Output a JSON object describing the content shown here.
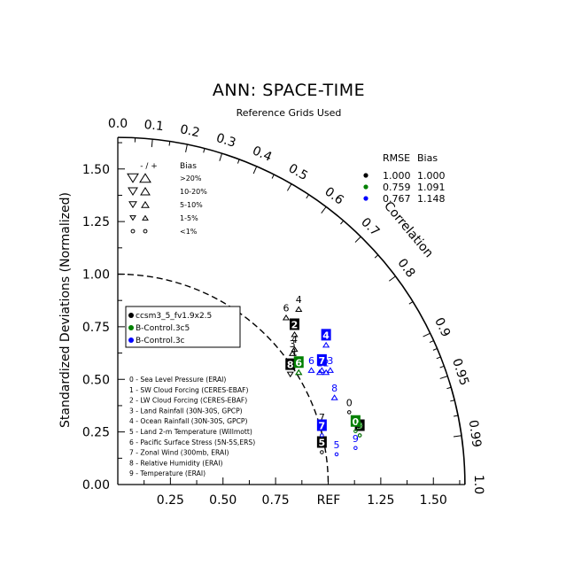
{
  "chart_data": {
    "type": "scatter",
    "subtype": "taylor-diagram",
    "title": "ANN: SPACE-TIME",
    "subtitle": "Reference Grids Used",
    "ylabel": "Standardized Deviations (Normalized)",
    "correlation_label": "Correlation",
    "ref_label": "REF",
    "x_ticks": [
      "0.25",
      "0.50",
      "0.75",
      "1.25",
      "1.50"
    ],
    "y_ticks": [
      "0.00",
      "0.25",
      "0.50",
      "0.75",
      "1.00",
      "1.25",
      "1.50"
    ],
    "correlation_ticks": [
      "0.0",
      "0.1",
      "0.2",
      "0.3",
      "0.4",
      "0.5",
      "0.6",
      "0.7",
      "0.8",
      "0.9",
      "0.95",
      "0.99",
      "1.0"
    ],
    "correlation_tick_values": [
      0.0,
      0.1,
      0.2,
      0.3,
      0.4,
      0.5,
      0.6,
      0.7,
      0.8,
      0.9,
      0.95,
      0.99,
      1.0
    ],
    "xlim": [
      0,
      1.65
    ],
    "ylim": [
      0,
      1.65
    ],
    "bias_legend": {
      "header": [
        "- / +",
        "Bias"
      ],
      "rows": [
        ">20%",
        "10-20%",
        "5-10%",
        "1-5%",
        "<1%"
      ]
    },
    "stats_table": {
      "header": [
        "RMSE",
        "Bias"
      ],
      "rows": [
        {
          "rmse": "1.000",
          "bias": "1.000",
          "color": "#000000"
        },
        {
          "rmse": "0.759",
          "bias": "1.091",
          "color": "#008000"
        },
        {
          "rmse": "0.767",
          "bias": "1.148",
          "color": "#0000ff"
        }
      ]
    },
    "cases": [
      {
        "name": "ccsm3_5_fv1.9x2.5",
        "color": "#000000"
      },
      {
        "name": "B-Control.3c5",
        "color": "#008000"
      },
      {
        "name": "B-Control.3c",
        "color": "#0000ff"
      }
    ],
    "variables": [
      "0 - Sea Level Pressure (ERAI)",
      "1 - SW Cloud Forcing (CERES-EBAF)",
      "2 - LW Cloud Forcing (CERES-EBAF)",
      "3 - Land Rainfall (30N-30S, GPCP)",
      "4 - Ocean Rainfall (30N-30S, GPCP)",
      "5 - Land 2-m Temperature (Willmott)",
      "6 - Pacific Surface Stress (5N-5S,ERS)",
      "7 - Zonal Wind (300mb, ERAI)",
      "8 - Relative Humidity (ERAI)",
      "9 - Temperature (ERAI)"
    ],
    "points": [
      {
        "case": 0,
        "label": "4",
        "x": 0.86,
        "y": 0.88,
        "box": false,
        "marker": "up"
      },
      {
        "case": 0,
        "label": "6",
        "x": 0.8,
        "y": 0.84,
        "box": false,
        "marker": "up"
      },
      {
        "case": 0,
        "label": "2",
        "x": 0.84,
        "y": 0.76,
        "box": true,
        "marker": "up"
      },
      {
        "case": 0,
        "label": "3",
        "x": 0.83,
        "y": 0.67,
        "box": false,
        "marker": "up"
      },
      {
        "case": 0,
        "label": "4",
        "x": 0.84,
        "y": 0.69,
        "box": false,
        "marker": "up"
      },
      {
        "case": 0,
        "label": "1",
        "x": 0.84,
        "y": 0.63,
        "box": false,
        "marker": "up"
      },
      {
        "case": 0,
        "label": "8",
        "x": 0.82,
        "y": 0.57,
        "box": true,
        "marker": "down"
      },
      {
        "case": 0,
        "label": "6",
        "x": 0.86,
        "y": 0.58,
        "box": false,
        "marker": "up"
      },
      {
        "case": 0,
        "label": "0",
        "x": 1.1,
        "y": 0.39,
        "box": false,
        "marker": "circle"
      },
      {
        "case": 0,
        "label": "7",
        "x": 0.97,
        "y": 0.32,
        "box": false,
        "marker": "up"
      },
      {
        "case": 0,
        "label": "5",
        "x": 0.97,
        "y": 0.2,
        "box": true,
        "marker": "circle"
      },
      {
        "case": 0,
        "label": "9",
        "x": 1.15,
        "y": 0.28,
        "box": true,
        "marker": "circle"
      },
      {
        "case": 1,
        "label": "6",
        "x": 0.86,
        "y": 0.58,
        "box": true,
        "marker": "up"
      },
      {
        "case": 1,
        "label": "0",
        "x": 1.13,
        "y": 0.3,
        "box": true,
        "marker": "circle"
      },
      {
        "case": 1,
        "label": "9",
        "x": 1.15,
        "y": 0.28,
        "box": false,
        "marker": "circle"
      },
      {
        "case": 2,
        "label": "4",
        "x": 0.99,
        "y": 0.71,
        "box": true,
        "marker": "up"
      },
      {
        "case": 2,
        "label": "7",
        "x": 0.97,
        "y": 0.59,
        "box": true,
        "marker": "up"
      },
      {
        "case": 2,
        "label": "6",
        "x": 0.92,
        "y": 0.59,
        "box": false,
        "marker": "up"
      },
      {
        "case": 2,
        "label": "1",
        "x": 0.96,
        "y": 0.58,
        "box": false,
        "marker": "up"
      },
      {
        "case": 2,
        "label": "3",
        "x": 1.01,
        "y": 0.59,
        "box": false,
        "marker": "up"
      },
      {
        "case": 2,
        "label": "2",
        "x": 0.99,
        "y": 0.58,
        "box": false,
        "marker": "up"
      },
      {
        "case": 2,
        "label": "8",
        "x": 1.03,
        "y": 0.46,
        "box": false,
        "marker": "up"
      },
      {
        "case": 2,
        "label": "7",
        "x": 0.97,
        "y": 0.28,
        "box": true,
        "marker": "circle"
      },
      {
        "case": 2,
        "label": "5",
        "x": 1.04,
        "y": 0.19,
        "box": false,
        "marker": "circle"
      },
      {
        "case": 2,
        "label": "9",
        "x": 1.13,
        "y": 0.22,
        "box": false,
        "marker": "circle"
      }
    ]
  }
}
